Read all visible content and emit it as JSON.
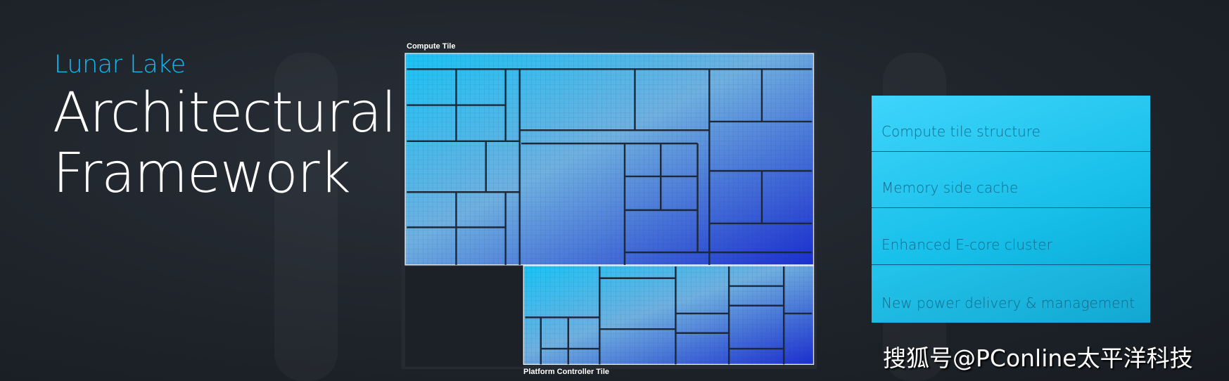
{
  "heading": {
    "brand": "Lunar Lake",
    "title_line1": "Architectural",
    "title_line2": "Framework"
  },
  "diagram": {
    "compute_tile_label": "Compute Tile",
    "platform_tile_label": "Platform Controller Tile",
    "colors": {
      "start": "#19c3f5",
      "mid": "#6fa8dc",
      "end": "#1b2fd0"
    }
  },
  "panel": {
    "items": [
      "Compute tile structure",
      "Memory side cache",
      "Enhanced E-core cluster",
      "New power delivery & management"
    ]
  },
  "watermark": "搜狐号@PConline太平洋科技"
}
